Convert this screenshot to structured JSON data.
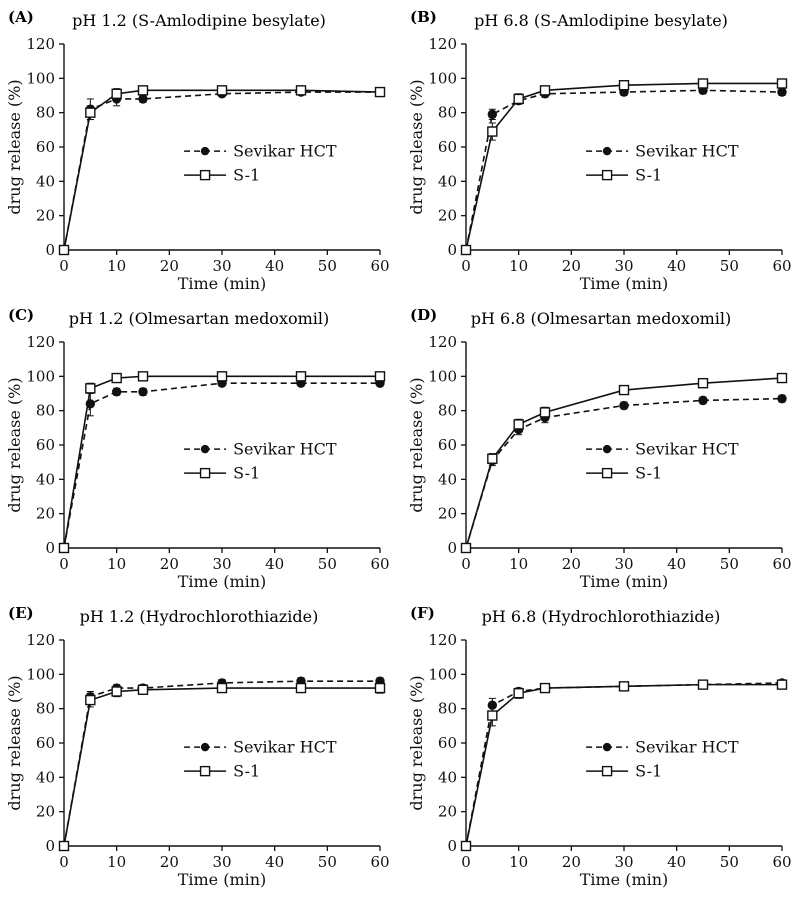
{
  "figure": {
    "accent_color": "#000000",
    "background_color": "#ffffff"
  },
  "axes": {
    "xlabel": "Time (min)",
    "ylabel": "drug release (%)",
    "xlim": [
      0,
      60
    ],
    "ylim": [
      0,
      120
    ],
    "x_ticks": [
      0,
      10,
      20,
      30,
      40,
      50,
      60
    ],
    "y_ticks": [
      0,
      20,
      40,
      60,
      80,
      100,
      120
    ],
    "grid": "off",
    "legend_position": "inside-lower-center"
  },
  "chart_data": [
    {
      "type": "line",
      "panel": "(A)",
      "title": "pH 1.2 (S-Amlodipine besylate)",
      "x": [
        0,
        5,
        10,
        15,
        30,
        45,
        60
      ],
      "series": [
        {
          "name": "Sevikar HCT",
          "marker": "circle-filled",
          "line": "dashed",
          "values": [
            0,
            82,
            88,
            88,
            91,
            92,
            92
          ],
          "errors": [
            0,
            6,
            4,
            2,
            1,
            1,
            1
          ]
        },
        {
          "name": "S-1",
          "marker": "square-open",
          "line": "solid",
          "values": [
            0,
            80,
            91,
            93,
            93,
            93,
            92
          ],
          "errors": [
            0,
            4,
            3,
            2,
            1,
            1,
            1
          ]
        }
      ]
    },
    {
      "type": "line",
      "panel": "(B)",
      "title": "pH 6.8 (S-Amlodipine besylate)",
      "x": [
        0,
        5,
        10,
        15,
        30,
        45,
        60
      ],
      "series": [
        {
          "name": "Sevikar HCT",
          "marker": "circle-filled",
          "line": "dashed",
          "values": [
            0,
            79,
            87,
            91,
            92,
            93,
            92
          ],
          "errors": [
            0,
            3,
            2,
            2,
            2,
            2,
            2
          ]
        },
        {
          "name": "S-1",
          "marker": "square-open",
          "line": "solid",
          "values": [
            0,
            69,
            88,
            93,
            96,
            97,
            97
          ],
          "errors": [
            0,
            5,
            3,
            2,
            1,
            1,
            1
          ]
        }
      ]
    },
    {
      "type": "line",
      "panel": "(C)",
      "title": "pH 1.2 (Olmesartan medoxomil)",
      "x": [
        0,
        5,
        10,
        15,
        30,
        45,
        60
      ],
      "series": [
        {
          "name": "Sevikar HCT",
          "marker": "circle-filled",
          "line": "dashed",
          "values": [
            0,
            84,
            91,
            91,
            96,
            96,
            96
          ],
          "errors": [
            0,
            7,
            2,
            2,
            1,
            1,
            1
          ]
        },
        {
          "name": "S-1",
          "marker": "square-open",
          "line": "solid",
          "values": [
            0,
            93,
            99,
            100,
            100,
            100,
            100
          ],
          "errors": [
            0,
            3,
            1,
            1,
            1,
            1,
            1
          ]
        }
      ]
    },
    {
      "type": "line",
      "panel": "(D)",
      "title": "pH 6.8 (Olmesartan medoxomil)",
      "x": [
        0,
        5,
        10,
        15,
        30,
        45,
        60
      ],
      "series": [
        {
          "name": "Sevikar HCT",
          "marker": "circle-filled",
          "line": "dashed",
          "values": [
            0,
            51,
            69,
            76,
            83,
            86,
            87
          ],
          "errors": [
            0,
            3,
            3,
            3,
            2,
            2,
            2
          ]
        },
        {
          "name": "S-1",
          "marker": "square-open",
          "line": "solid",
          "values": [
            0,
            52,
            72,
            79,
            92,
            96,
            99
          ],
          "errors": [
            0,
            3,
            3,
            3,
            2,
            2,
            2
          ]
        }
      ]
    },
    {
      "type": "line",
      "panel": "(E)",
      "title": "pH 1.2 (Hydrochlorothiazide)",
      "x": [
        0,
        5,
        10,
        15,
        30,
        45,
        60
      ],
      "series": [
        {
          "name": "Sevikar HCT",
          "marker": "circle-filled",
          "line": "dashed",
          "values": [
            0,
            87,
            92,
            92,
            95,
            96,
            96
          ],
          "errors": [
            0,
            3,
            2,
            2,
            2,
            2,
            2
          ]
        },
        {
          "name": "S-1",
          "marker": "square-open",
          "line": "solid",
          "values": [
            0,
            85,
            90,
            91,
            92,
            92,
            92
          ],
          "errors": [
            0,
            4,
            3,
            2,
            2,
            2,
            3
          ]
        }
      ]
    },
    {
      "type": "line",
      "panel": "(F)",
      "title": "pH 6.8 (Hydrochlorothiazide)",
      "x": [
        0,
        5,
        10,
        15,
        30,
        45,
        60
      ],
      "series": [
        {
          "name": "Sevikar HCT",
          "marker": "circle-filled",
          "line": "dashed",
          "values": [
            0,
            82,
            90,
            92,
            93,
            94,
            95
          ],
          "errors": [
            0,
            4,
            2,
            2,
            1,
            1,
            1
          ]
        },
        {
          "name": "S-1",
          "marker": "square-open",
          "line": "solid",
          "values": [
            0,
            76,
            89,
            92,
            93,
            94,
            94
          ],
          "errors": [
            0,
            6,
            3,
            2,
            1,
            1,
            1
          ]
        }
      ]
    }
  ],
  "legend": {
    "entries": [
      "Sevikar HCT",
      "S-1"
    ]
  }
}
